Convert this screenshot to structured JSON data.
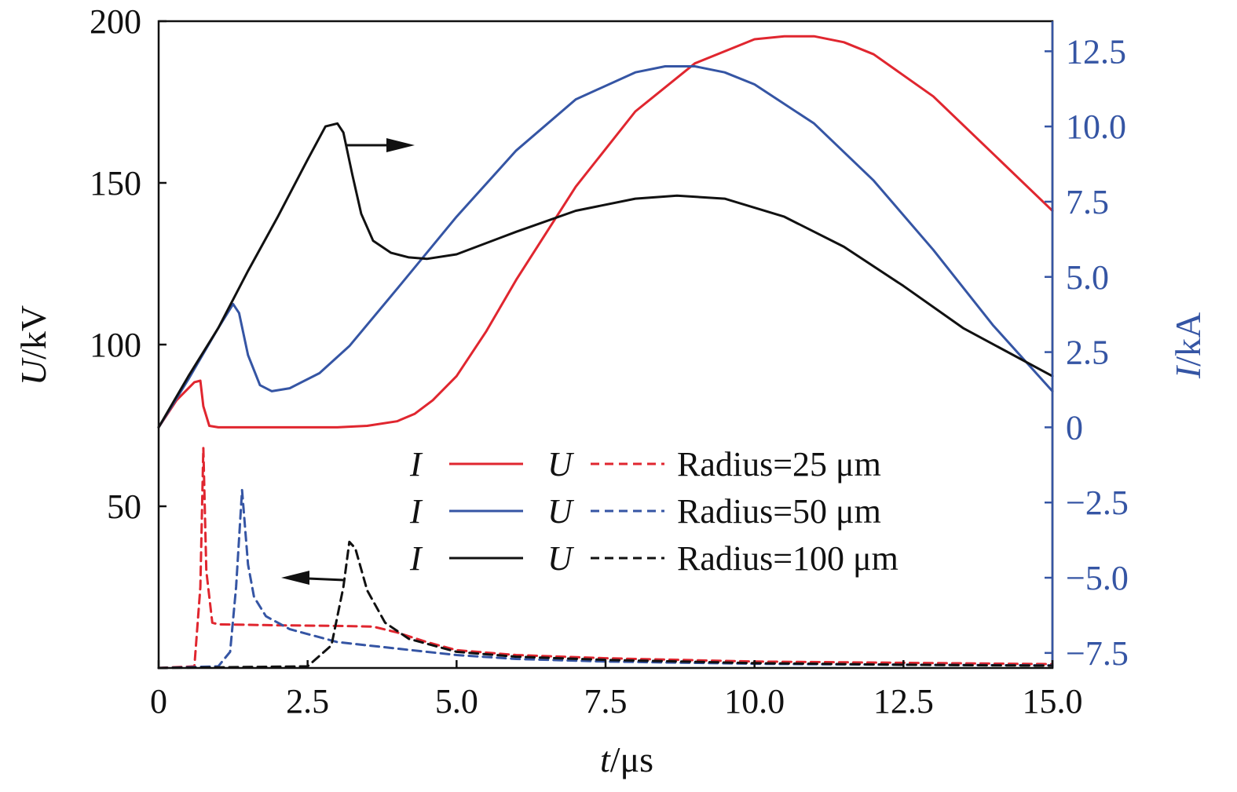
{
  "chart_data": {
    "type": "line",
    "x_axis": {
      "label_var": "t",
      "label_unit": "/μs",
      "range": [
        0,
        15
      ],
      "ticks": [
        0,
        2.5,
        5.0,
        7.5,
        10.0,
        12.5,
        15.0
      ],
      "tick_labels": [
        "0",
        "2.5",
        "5.0",
        "7.5",
        "10.0",
        "12.5",
        "15.0"
      ]
    },
    "y_left": {
      "label_var": "U",
      "label_unit": "/kV",
      "range": [
        0,
        200
      ],
      "ticks": [
        0,
        50,
        100,
        150,
        200
      ],
      "tick_labels": [
        "",
        "50",
        "100",
        "150",
        "200"
      ]
    },
    "y_right": {
      "label_var": "I",
      "label_unit": "/kA",
      "range": [
        -8,
        13.5
      ],
      "ticks": [
        -7.5,
        -5.0,
        -2.5,
        0,
        2.5,
        5.0,
        7.5,
        10.0,
        12.5
      ],
      "tick_labels": [
        "−7.5",
        "−5.0",
        "−2.5",
        "0",
        "2.5",
        "5.0",
        "7.5",
        "10.0",
        "12.5"
      ],
      "color": "#3555a4"
    },
    "legend": {
      "placement": "lower-center",
      "i_symbol": "I",
      "u_symbol": "U",
      "entries": [
        "Radius=25 μm",
        "Radius=50 μm",
        "Radius=100 μm"
      ]
    },
    "series": [
      {
        "quantity": "I",
        "axis": "right",
        "style": "solid",
        "color": "#e0262f",
        "x": [
          0,
          0.3,
          0.6,
          0.7,
          0.75,
          0.85,
          1.0,
          2.0,
          3.0,
          3.5,
          4.0,
          4.3,
          4.6,
          5.0,
          5.5,
          6.0,
          7.0,
          8.0,
          9.0,
          10.0,
          10.5,
          11.0,
          11.5,
          12.0,
          13.0,
          14.0,
          15.0
        ],
        "y": [
          0,
          0.9,
          1.5,
          1.55,
          0.7,
          0.05,
          0,
          0,
          0,
          0.05,
          0.2,
          0.45,
          0.9,
          1.7,
          3.2,
          4.9,
          8.0,
          10.5,
          12.1,
          12.9,
          13.0,
          13.0,
          12.8,
          12.4,
          11.0,
          9.1,
          7.2
        ]
      },
      {
        "quantity": "I",
        "axis": "right",
        "style": "solid",
        "color": "#3555a4",
        "x": [
          0,
          0.5,
          1.0,
          1.25,
          1.35,
          1.5,
          1.7,
          1.9,
          2.2,
          2.7,
          3.2,
          4.0,
          5.0,
          6.0,
          7.0,
          8.0,
          8.5,
          9.0,
          9.5,
          10.0,
          11.0,
          12.0,
          13.0,
          14.0,
          15.0
        ],
        "y": [
          0,
          1.6,
          3.3,
          4.1,
          3.8,
          2.4,
          1.4,
          1.2,
          1.3,
          1.8,
          2.7,
          4.6,
          7.0,
          9.2,
          10.9,
          11.8,
          12.0,
          12.0,
          11.8,
          11.4,
          10.1,
          8.2,
          5.9,
          3.4,
          1.2
        ]
      },
      {
        "quantity": "I",
        "axis": "right",
        "style": "solid",
        "color": "#111111",
        "x": [
          0,
          0.5,
          1.0,
          1.5,
          2.0,
          2.5,
          2.8,
          3.0,
          3.1,
          3.25,
          3.4,
          3.6,
          3.9,
          4.2,
          4.5,
          5.0,
          6.0,
          7.0,
          8.0,
          8.7,
          9.5,
          10.5,
          11.5,
          12.5,
          13.5,
          15.0
        ],
        "y": [
          0,
          1.7,
          3.3,
          5.2,
          7.0,
          8.9,
          10.0,
          10.1,
          9.8,
          8.4,
          7.1,
          6.2,
          5.8,
          5.65,
          5.6,
          5.75,
          6.5,
          7.2,
          7.6,
          7.7,
          7.6,
          7.0,
          6.0,
          4.7,
          3.3,
          1.7
        ]
      },
      {
        "quantity": "U",
        "axis": "left",
        "style": "dashed",
        "color": "#e0262f",
        "x": [
          0,
          0.6,
          0.7,
          0.75,
          0.8,
          0.9,
          1.0,
          2.0,
          3.0,
          3.6,
          4.0,
          4.5,
          5.0,
          6.0,
          7.5,
          10.0,
          12.5,
          15.0
        ],
        "y": [
          0,
          0.5,
          25,
          68,
          30,
          14,
          13.5,
          13.2,
          13.0,
          12.8,
          11.0,
          8.0,
          5.5,
          4.0,
          3.0,
          2.0,
          1.6,
          1.2
        ]
      },
      {
        "quantity": "U",
        "axis": "left",
        "style": "dashed",
        "color": "#3555a4",
        "x": [
          0,
          1.0,
          1.2,
          1.3,
          1.4,
          1.5,
          1.6,
          1.8,
          2.2,
          3.0,
          4.0,
          5.0,
          6.0,
          7.5,
          10.0,
          12.5,
          15.0
        ],
        "y": [
          0,
          0.5,
          5,
          25,
          55,
          32,
          22,
          16,
          12,
          8,
          6,
          4,
          2.8,
          2.0,
          1.3,
          1.0,
          0.8
        ]
      },
      {
        "quantity": "U",
        "axis": "left",
        "style": "dashed",
        "color": "#111111",
        "x": [
          0,
          2.5,
          2.9,
          3.1,
          3.2,
          3.3,
          3.5,
          3.8,
          4.2,
          5.0,
          6.0,
          7.5,
          10.0,
          12.5,
          15.0
        ],
        "y": [
          0,
          0.5,
          7,
          25,
          39,
          37,
          24,
          14,
          9,
          5,
          3.5,
          2.5,
          1.5,
          1.0,
          0.7
        ]
      }
    ]
  }
}
